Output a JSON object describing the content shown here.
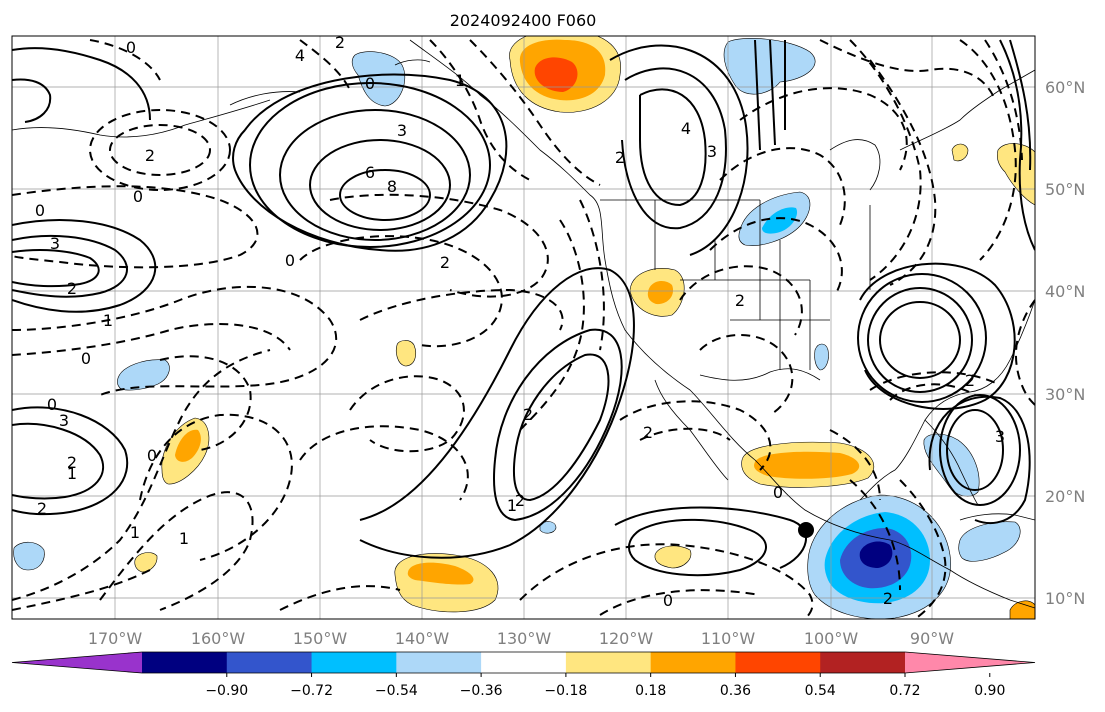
{
  "title": "2024092400 F060",
  "lon_ticks": [
    "170°W",
    "160°W",
    "150°W",
    "140°W",
    "130°W",
    "120°W",
    "110°W",
    "100°W",
    "90°W"
  ],
  "lat_ticks": [
    "60°N",
    "50°N",
    "40°N",
    "30°N",
    "20°N",
    "10°N"
  ],
  "colorbar": {
    "tick_labels": [
      "−0.90",
      "−0.72",
      "−0.54",
      "−0.36",
      "−0.18",
      "0.18",
      "0.36",
      "0.54",
      "0.72",
      "0.90"
    ],
    "colors": [
      "#9933cc",
      "#000080",
      "#3355cc",
      "#00bfff",
      "#add8f8",
      "#ffffff",
      "#ffe680",
      "#ffa500",
      "#ff4500",
      "#b22222",
      "#ff88aa"
    ]
  },
  "contour_labels": [
    {
      "text": "0"
    },
    {
      "text": "2"
    },
    {
      "text": "4"
    },
    {
      "text": "6"
    },
    {
      "text": "8"
    },
    {
      "text": "3"
    },
    {
      "text": "0"
    },
    {
      "text": "3"
    },
    {
      "text": "2"
    },
    {
      "text": "1"
    },
    {
      "text": "0"
    },
    {
      "text": "2"
    },
    {
      "text": "0"
    },
    {
      "text": "2"
    },
    {
      "text": "0"
    },
    {
      "text": "3"
    },
    {
      "text": "2"
    },
    {
      "text": "1"
    },
    {
      "text": "2"
    },
    {
      "text": "1"
    },
    {
      "text": "0"
    },
    {
      "text": "1"
    },
    {
      "text": "0"
    },
    {
      "text": "1"
    },
    {
      "text": "2"
    },
    {
      "text": "4"
    },
    {
      "text": "3"
    },
    {
      "text": "2"
    },
    {
      "text": "0"
    },
    {
      "text": "1"
    },
    {
      "text": "2"
    },
    {
      "text": "2"
    },
    {
      "text": "0"
    },
    {
      "text": "2"
    },
    {
      "text": "3"
    },
    {
      "text": "2"
    },
    {
      "text": "0"
    },
    {
      "text": "2"
    }
  ],
  "regions": [
    "orange-gulf-of-alaska",
    "blue-yukon",
    "blue-hudson-bay-west",
    "orange-california",
    "orange-mexico-west",
    "orange-mid-pacific",
    "orange-west-pacific",
    "blue-west-pacific",
    "blue-gulf-of-tehuantepec",
    "blue-florida",
    "blue-caribbean",
    "orange-baja-south"
  ]
}
